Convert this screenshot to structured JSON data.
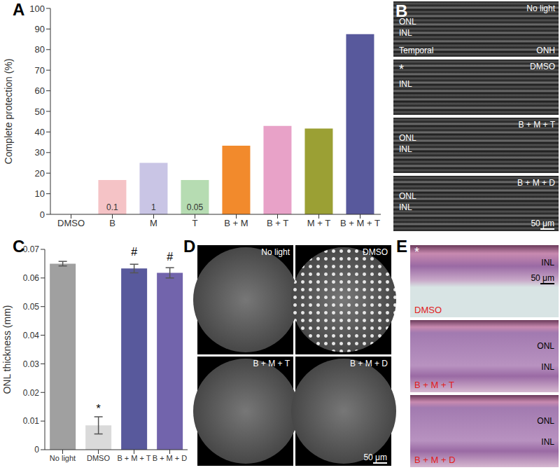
{
  "chart_data": [
    {
      "panel": "A",
      "type": "bar",
      "categories": [
        "DMSO",
        "B",
        "M",
        "T",
        "B + M",
        "B + T",
        "M + T",
        "B + M + T"
      ],
      "values": [
        0,
        16.7,
        25,
        16.7,
        33.3,
        42.9,
        41.7,
        87.5
      ],
      "colors": [
        "#cccccc",
        "#f5c3c6",
        "#c9c5e5",
        "#b6dcb2",
        "#f28a2c",
        "#e8a2c8",
        "#9ba034",
        "#58599c"
      ],
      "annotations": [
        {
          "category": "B",
          "text": "0.1"
        },
        {
          "category": "M",
          "text": "1"
        },
        {
          "category": "T",
          "text": "0.05"
        }
      ],
      "ylabel": "Complete protection (%)",
      "ylim": [
        0,
        100
      ],
      "yticks": [
        0,
        10,
        20,
        30,
        40,
        50,
        60,
        70,
        80,
        90,
        100
      ]
    },
    {
      "panel": "C",
      "type": "bar",
      "categories": [
        "No light",
        "DMSO",
        "B + M + T",
        "B + M + D"
      ],
      "values": [
        0.065,
        0.0085,
        0.0633,
        0.0618
      ],
      "errors": [
        0.0008,
        0.003,
        0.0015,
        0.0018
      ],
      "colors": [
        "#a0a0a0",
        "#dadada",
        "#58599c",
        "#7264ac"
      ],
      "significance": [
        {
          "category": "DMSO",
          "text": "*"
        },
        {
          "category": "B + M + T",
          "text": "#"
        },
        {
          "category": "B + M + D",
          "text": "#"
        }
      ],
      "ylabel": "ONL thickness (mm)",
      "ylim": [
        0,
        0.07
      ],
      "yticks": [
        0,
        0.01,
        0.02,
        0.03,
        0.04,
        0.05,
        0.06,
        0.07
      ]
    }
  ],
  "images": [
    {
      "panel": "B",
      "tiles": [
        {
          "label": "No light",
          "layers": [
            "ONL",
            "INL"
          ],
          "left_note": "Temporal",
          "right_note": "ONH"
        },
        {
          "label": "DMSO",
          "star": "*",
          "layers": [
            "INL"
          ]
        },
        {
          "label": "B + M + T",
          "layers": [
            "ONL",
            "INL"
          ]
        },
        {
          "label": "B + M + D",
          "layers": [
            "ONL",
            "INL"
          ],
          "scale_bar": "50 μm"
        }
      ]
    },
    {
      "panel": "D",
      "tiles": [
        {
          "label": "No light"
        },
        {
          "label": "DMSO"
        },
        {
          "label": "B + M + T"
        },
        {
          "label": "B + M + D",
          "scale_bar": "50 μm"
        }
      ]
    },
    {
      "panel": "E",
      "tiles": [
        {
          "label": "DMSO",
          "star": "*",
          "layers": [
            "INL"
          ],
          "scale_bar": "50 μm"
        },
        {
          "label": "B + M + T",
          "layers": [
            "ONL",
            "INL"
          ]
        },
        {
          "label": "B + M + D",
          "layers": [
            "ONL",
            "INL"
          ]
        }
      ]
    }
  ]
}
